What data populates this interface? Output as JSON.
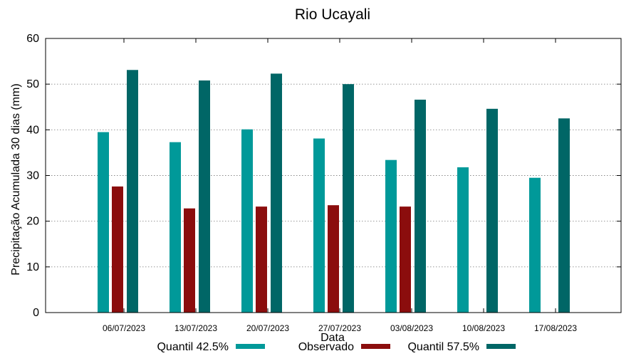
{
  "chart_data": {
    "type": "bar",
    "title": "Rio Ucayali",
    "xlabel": "Data",
    "ylabel": "Precipitação Acumulada 30 dias (mm)",
    "ylim": [
      0,
      60
    ],
    "yticks": [
      0,
      10,
      20,
      30,
      40,
      50,
      60
    ],
    "grid": true,
    "legend_position": "bottom",
    "categories": [
      "06/07/2023",
      "13/07/2023",
      "20/07/2023",
      "27/07/2023",
      "03/08/2023",
      "10/08/2023",
      "17/08/2023"
    ],
    "series": [
      {
        "name": "Quantil 42.5%",
        "color": "#009999",
        "values": [
          39.5,
          37.3,
          40.1,
          38.1,
          33.4,
          31.8,
          29.5
        ]
      },
      {
        "name": "Observado",
        "color": "#8b0d0d",
        "values": [
          27.6,
          22.8,
          23.2,
          23.5,
          23.2,
          null,
          null
        ]
      },
      {
        "name": "Quantil 57.5%",
        "color": "#006666",
        "values": [
          53.1,
          50.8,
          52.3,
          50.0,
          46.6,
          44.6,
          42.5
        ]
      }
    ]
  }
}
